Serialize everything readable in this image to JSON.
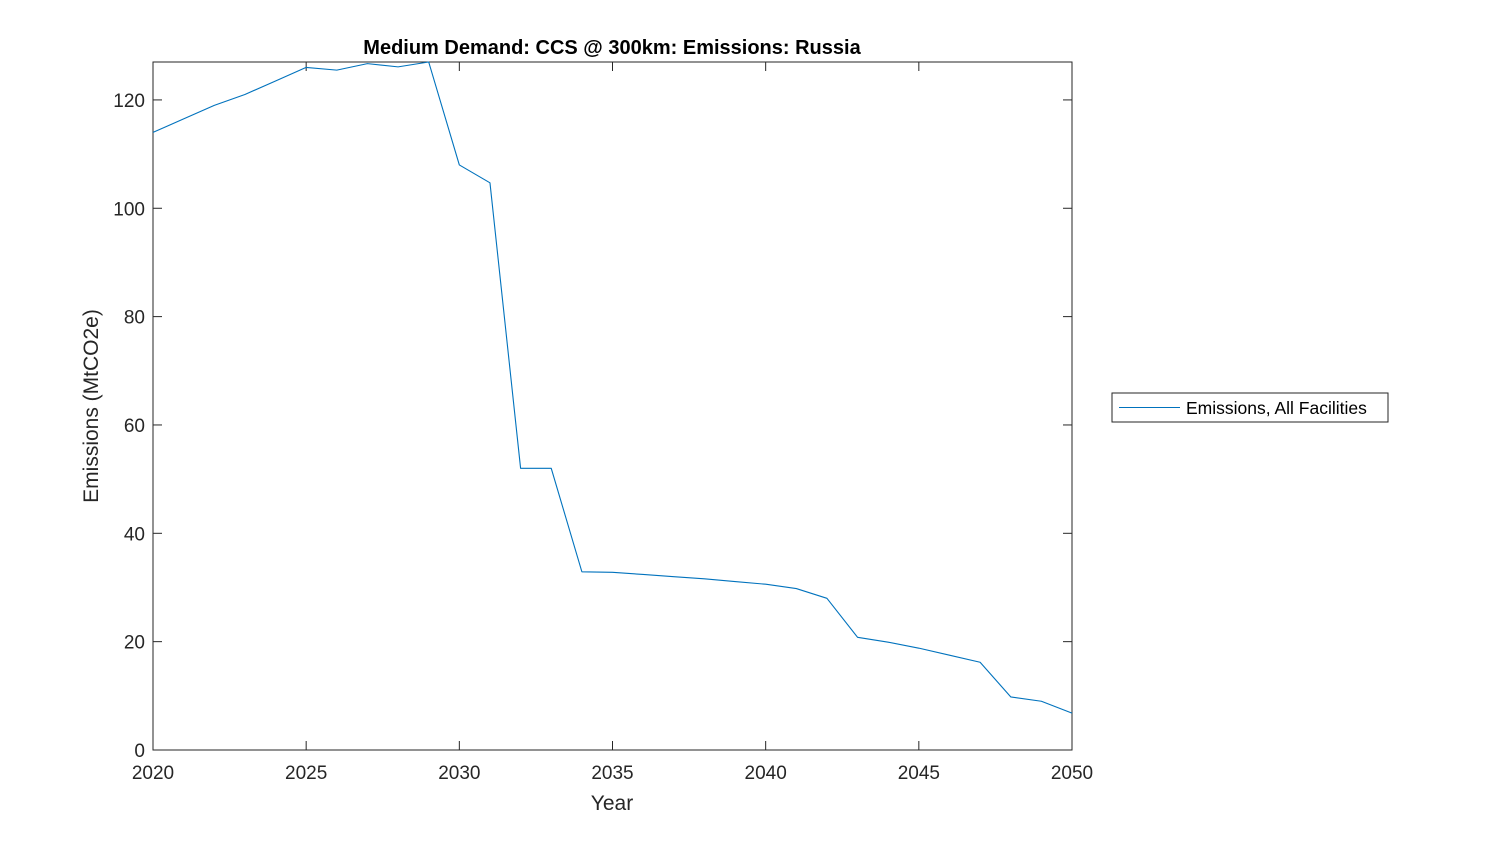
{
  "chart_data": {
    "type": "line",
    "title": "Medium Demand: CCS @ 300km: Emissions: Russia",
    "xlabel": "Year",
    "ylabel": "Emissions (MtCO2e)",
    "xlim": [
      2020,
      2050
    ],
    "ylim": [
      0,
      127
    ],
    "xticks": [
      2020,
      2025,
      2030,
      2035,
      2040,
      2045,
      2050
    ],
    "yticks": [
      0,
      20,
      40,
      60,
      80,
      100,
      120
    ],
    "grid": false,
    "legend_position": "outside right",
    "series": [
      {
        "name": "Emissions, All Facilities",
        "color": "#0072BD",
        "x": [
          2020,
          2021,
          2022,
          2023,
          2024,
          2025,
          2026,
          2027,
          2028,
          2029,
          2030,
          2031,
          2032,
          2033,
          2034,
          2035,
          2036,
          2037,
          2038,
          2039,
          2040,
          2041,
          2042,
          2043,
          2044,
          2045,
          2046,
          2047,
          2048,
          2049,
          2050
        ],
        "y": [
          114,
          116.5,
          119,
          121,
          123.5,
          126,
          125.5,
          126.7,
          126.1,
          127,
          108,
          104.7,
          52,
          52,
          32.9,
          32.8,
          32.4,
          32.0,
          31.6,
          31.1,
          30.6,
          29.8,
          28.0,
          20.8,
          19.9,
          18.8,
          17.5,
          16.2,
          9.8,
          9.0,
          6.8
        ]
      }
    ]
  }
}
